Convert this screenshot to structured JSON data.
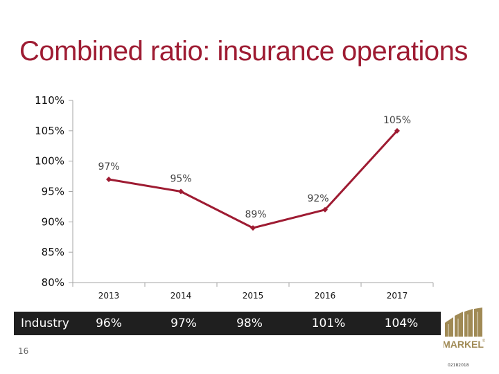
{
  "title": "Combined ratio: insurance operations",
  "chart_data": {
    "type": "line",
    "title": "Combined ratio: insurance operations",
    "xlabel": "",
    "ylabel": "",
    "categories": [
      "2013",
      "2014",
      "2015",
      "2016",
      "2017"
    ],
    "series": [
      {
        "name": "Combined ratio",
        "values": [
          97,
          95,
          89,
          92,
          105
        ],
        "labels": [
          "97%",
          "95%",
          "89%",
          "92%",
          "105%"
        ],
        "color": "#9e1b32"
      }
    ],
    "ylim": [
      80,
      110
    ],
    "yticks": [
      80,
      85,
      90,
      95,
      100,
      105,
      110
    ],
    "ytick_labels": [
      "80%",
      "85%",
      "90%",
      "95%",
      "100%",
      "105%",
      "110%"
    ],
    "grid": false,
    "legend": "none"
  },
  "industry": {
    "label": "Industry",
    "values": [
      "96%",
      "97%",
      "98%",
      "101%",
      "104%"
    ],
    "bar_color": "#1f1f1f",
    "text_color": "#ffffff"
  },
  "page_number": "16",
  "logo": {
    "text": "MARKEL",
    "mark": "®",
    "color": "#a08a55"
  },
  "footer_code": "02182018"
}
